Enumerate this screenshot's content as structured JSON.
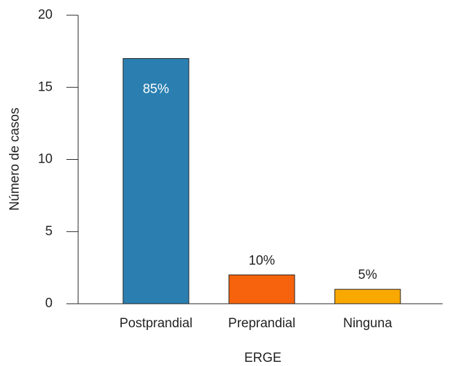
{
  "chart_data": {
    "type": "bar",
    "x_label": "ERGE",
    "y_label": "Número de casos",
    "categories": [
      "Postprandial",
      "Preprandial",
      "Ninguna"
    ],
    "values": [
      17,
      2,
      1
    ],
    "annotations": [
      "85%",
      "10%",
      "5%"
    ],
    "colors": [
      "#2a7fb0",
      "#f7630c",
      "#f9a800"
    ],
    "ylim": [
      0,
      20
    ],
    "yticks": [
      0,
      5,
      10,
      15,
      20
    ]
  }
}
